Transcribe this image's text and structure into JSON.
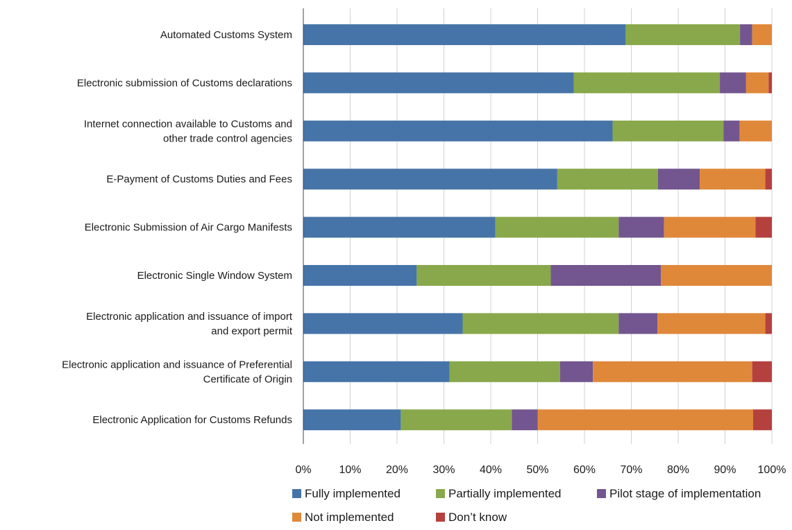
{
  "chart_data": {
    "type": "bar",
    "orientation": "horizontal",
    "stacked": true,
    "categories": [
      [
        "Automated Customs System"
      ],
      [
        "Electronic submission of Customs declarations"
      ],
      [
        "Internet connection available to Customs and",
        "other trade control agencies"
      ],
      [
        "E-Payment of Customs Duties and Fees"
      ],
      [
        "Electronic Submission of Air Cargo Manifests"
      ],
      [
        "Electronic Single Window System"
      ],
      [
        "Electronic application and issuance of import",
        "and export permit"
      ],
      [
        "Electronic application and issuance of Preferential",
        "Certificate of Origin"
      ],
      [
        "Electronic Application for Customs Refunds"
      ]
    ],
    "series": [
      {
        "name": "Fully implemented",
        "color": "#4674a8",
        "values": [
          68.8,
          57.7,
          66.0,
          54.2,
          41.0,
          24.2,
          34.0,
          31.2,
          20.8
        ]
      },
      {
        "name": "Partially implemented",
        "color": "#89a84b",
        "values": [
          24.4,
          31.2,
          23.7,
          21.5,
          26.3,
          28.6,
          33.3,
          23.6,
          23.7
        ]
      },
      {
        "name": "Pilot stage of implementation",
        "color": "#73568f",
        "values": [
          2.6,
          5.6,
          3.4,
          8.9,
          9.7,
          23.5,
          8.3,
          7.0,
          5.5
        ]
      },
      {
        "name": "Not implemented",
        "color": "#e0883a",
        "values": [
          4.2,
          4.8,
          6.9,
          14.0,
          19.5,
          23.7,
          23.0,
          34.0,
          46.0
        ]
      },
      {
        "name": "Don’t know",
        "color": "#b5413e",
        "values": [
          0.0,
          0.7,
          0.0,
          1.4,
          3.5,
          0.0,
          1.4,
          4.2,
          4.0
        ]
      }
    ],
    "xlim": [
      0,
      100
    ],
    "xticks": [
      "0%",
      "10%",
      "20%",
      "30%",
      "40%",
      "50%",
      "60%",
      "70%",
      "80%",
      "90%",
      "100%"
    ],
    "grid": true,
    "legend_position": "bottom",
    "title": "",
    "xlabel": "",
    "ylabel": ""
  }
}
